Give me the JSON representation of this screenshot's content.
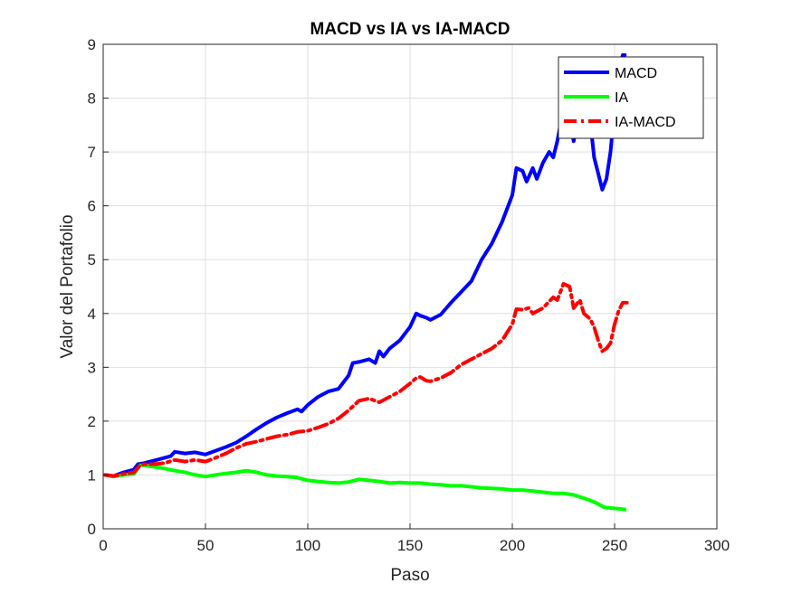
{
  "chart_data": {
    "type": "line",
    "title": "MACD vs IA vs IA-MACD",
    "xlabel": "Paso",
    "ylabel": "Valor del Portafolio",
    "xlim": [
      0,
      300
    ],
    "ylim": [
      0,
      9
    ],
    "xticks": [
      "0",
      "50",
      "100",
      "150",
      "200",
      "250",
      "300"
    ],
    "yticks": [
      "0",
      "1",
      "2",
      "3",
      "4",
      "5",
      "6",
      "7",
      "8",
      "9"
    ],
    "grid": true,
    "legend_position": "top-right",
    "series": [
      {
        "name": "MACD",
        "color": "#0000ff",
        "dash": "solid",
        "x": [
          1,
          5,
          10,
          15,
          17,
          20,
          25,
          30,
          33,
          35,
          40,
          45,
          50,
          55,
          60,
          65,
          70,
          75,
          80,
          85,
          90,
          95,
          97,
          100,
          105,
          110,
          115,
          120,
          122,
          125,
          130,
          133,
          135,
          137,
          140,
          145,
          150,
          153,
          155,
          158,
          160,
          165,
          170,
          175,
          180,
          185,
          190,
          195,
          200,
          202,
          205,
          207,
          210,
          212,
          215,
          218,
          220,
          222,
          225,
          227,
          229,
          230,
          232,
          234,
          236,
          238,
          240,
          242,
          244,
          246,
          248,
          250,
          252,
          254,
          255
        ],
        "y": [
          1.0,
          0.98,
          1.05,
          1.1,
          1.2,
          1.22,
          1.27,
          1.32,
          1.35,
          1.43,
          1.4,
          1.42,
          1.38,
          1.45,
          1.52,
          1.6,
          1.72,
          1.85,
          1.97,
          2.07,
          2.15,
          2.22,
          2.18,
          2.3,
          2.45,
          2.55,
          2.6,
          2.85,
          3.08,
          3.1,
          3.15,
          3.08,
          3.3,
          3.2,
          3.35,
          3.5,
          3.75,
          4.0,
          3.96,
          3.92,
          3.88,
          3.98,
          4.2,
          4.4,
          4.6,
          5.0,
          5.3,
          5.7,
          6.2,
          6.7,
          6.65,
          6.45,
          6.7,
          6.5,
          6.8,
          7.0,
          6.9,
          7.2,
          7.8,
          8.0,
          7.4,
          7.2,
          7.6,
          7.3,
          7.9,
          7.6,
          6.9,
          6.6,
          6.3,
          6.5,
          7.0,
          7.8,
          8.5,
          8.8,
          8.8
        ]
      },
      {
        "name": "IA",
        "color": "#00ff00",
        "dash": "solid",
        "x": [
          1,
          5,
          10,
          15,
          18,
          20,
          25,
          30,
          35,
          40,
          45,
          50,
          55,
          60,
          65,
          70,
          75,
          80,
          85,
          90,
          95,
          100,
          105,
          110,
          115,
          120,
          125,
          130,
          135,
          140,
          145,
          150,
          155,
          160,
          165,
          170,
          175,
          180,
          185,
          190,
          195,
          200,
          205,
          210,
          215,
          220,
          225,
          230,
          235,
          240,
          245,
          250,
          255
        ],
        "y": [
          1.0,
          0.97,
          1.0,
          1.02,
          1.18,
          1.18,
          1.15,
          1.12,
          1.08,
          1.05,
          1.0,
          0.97,
          1.0,
          1.03,
          1.05,
          1.08,
          1.05,
          1.0,
          0.98,
          0.97,
          0.95,
          0.9,
          0.88,
          0.86,
          0.85,
          0.87,
          0.92,
          0.9,
          0.88,
          0.85,
          0.86,
          0.85,
          0.85,
          0.83,
          0.82,
          0.8,
          0.8,
          0.78,
          0.76,
          0.75,
          0.74,
          0.72,
          0.72,
          0.7,
          0.68,
          0.66,
          0.66,
          0.63,
          0.57,
          0.5,
          0.4,
          0.38,
          0.36
        ]
      },
      {
        "name": "IA-MACD",
        "color": "#ff0000",
        "dash": "dashdot",
        "x": [
          1,
          5,
          10,
          15,
          18,
          20,
          25,
          30,
          35,
          40,
          45,
          50,
          55,
          60,
          65,
          70,
          75,
          80,
          85,
          90,
          95,
          100,
          105,
          110,
          115,
          120,
          125,
          130,
          135,
          140,
          145,
          150,
          153,
          155,
          158,
          160,
          165,
          170,
          175,
          180,
          185,
          190,
          195,
          200,
          202,
          205,
          208,
          210,
          215,
          220,
          222,
          225,
          228,
          230,
          233,
          235,
          238,
          240,
          242,
          244,
          246,
          248,
          250,
          252,
          254,
          256
        ],
        "y": [
          1.0,
          0.98,
          1.02,
          1.05,
          1.18,
          1.2,
          1.2,
          1.22,
          1.28,
          1.25,
          1.28,
          1.25,
          1.32,
          1.4,
          1.5,
          1.58,
          1.62,
          1.67,
          1.72,
          1.75,
          1.8,
          1.82,
          1.88,
          1.95,
          2.05,
          2.2,
          2.38,
          2.42,
          2.35,
          2.45,
          2.55,
          2.7,
          2.8,
          2.82,
          2.75,
          2.74,
          2.8,
          2.9,
          3.05,
          3.15,
          3.25,
          3.35,
          3.5,
          3.8,
          4.08,
          4.07,
          4.1,
          4.0,
          4.1,
          4.3,
          4.25,
          4.55,
          4.5,
          4.1,
          4.25,
          4.0,
          3.9,
          3.75,
          3.5,
          3.3,
          3.35,
          3.45,
          3.8,
          4.05,
          4.2,
          4.2
        ]
      }
    ]
  }
}
